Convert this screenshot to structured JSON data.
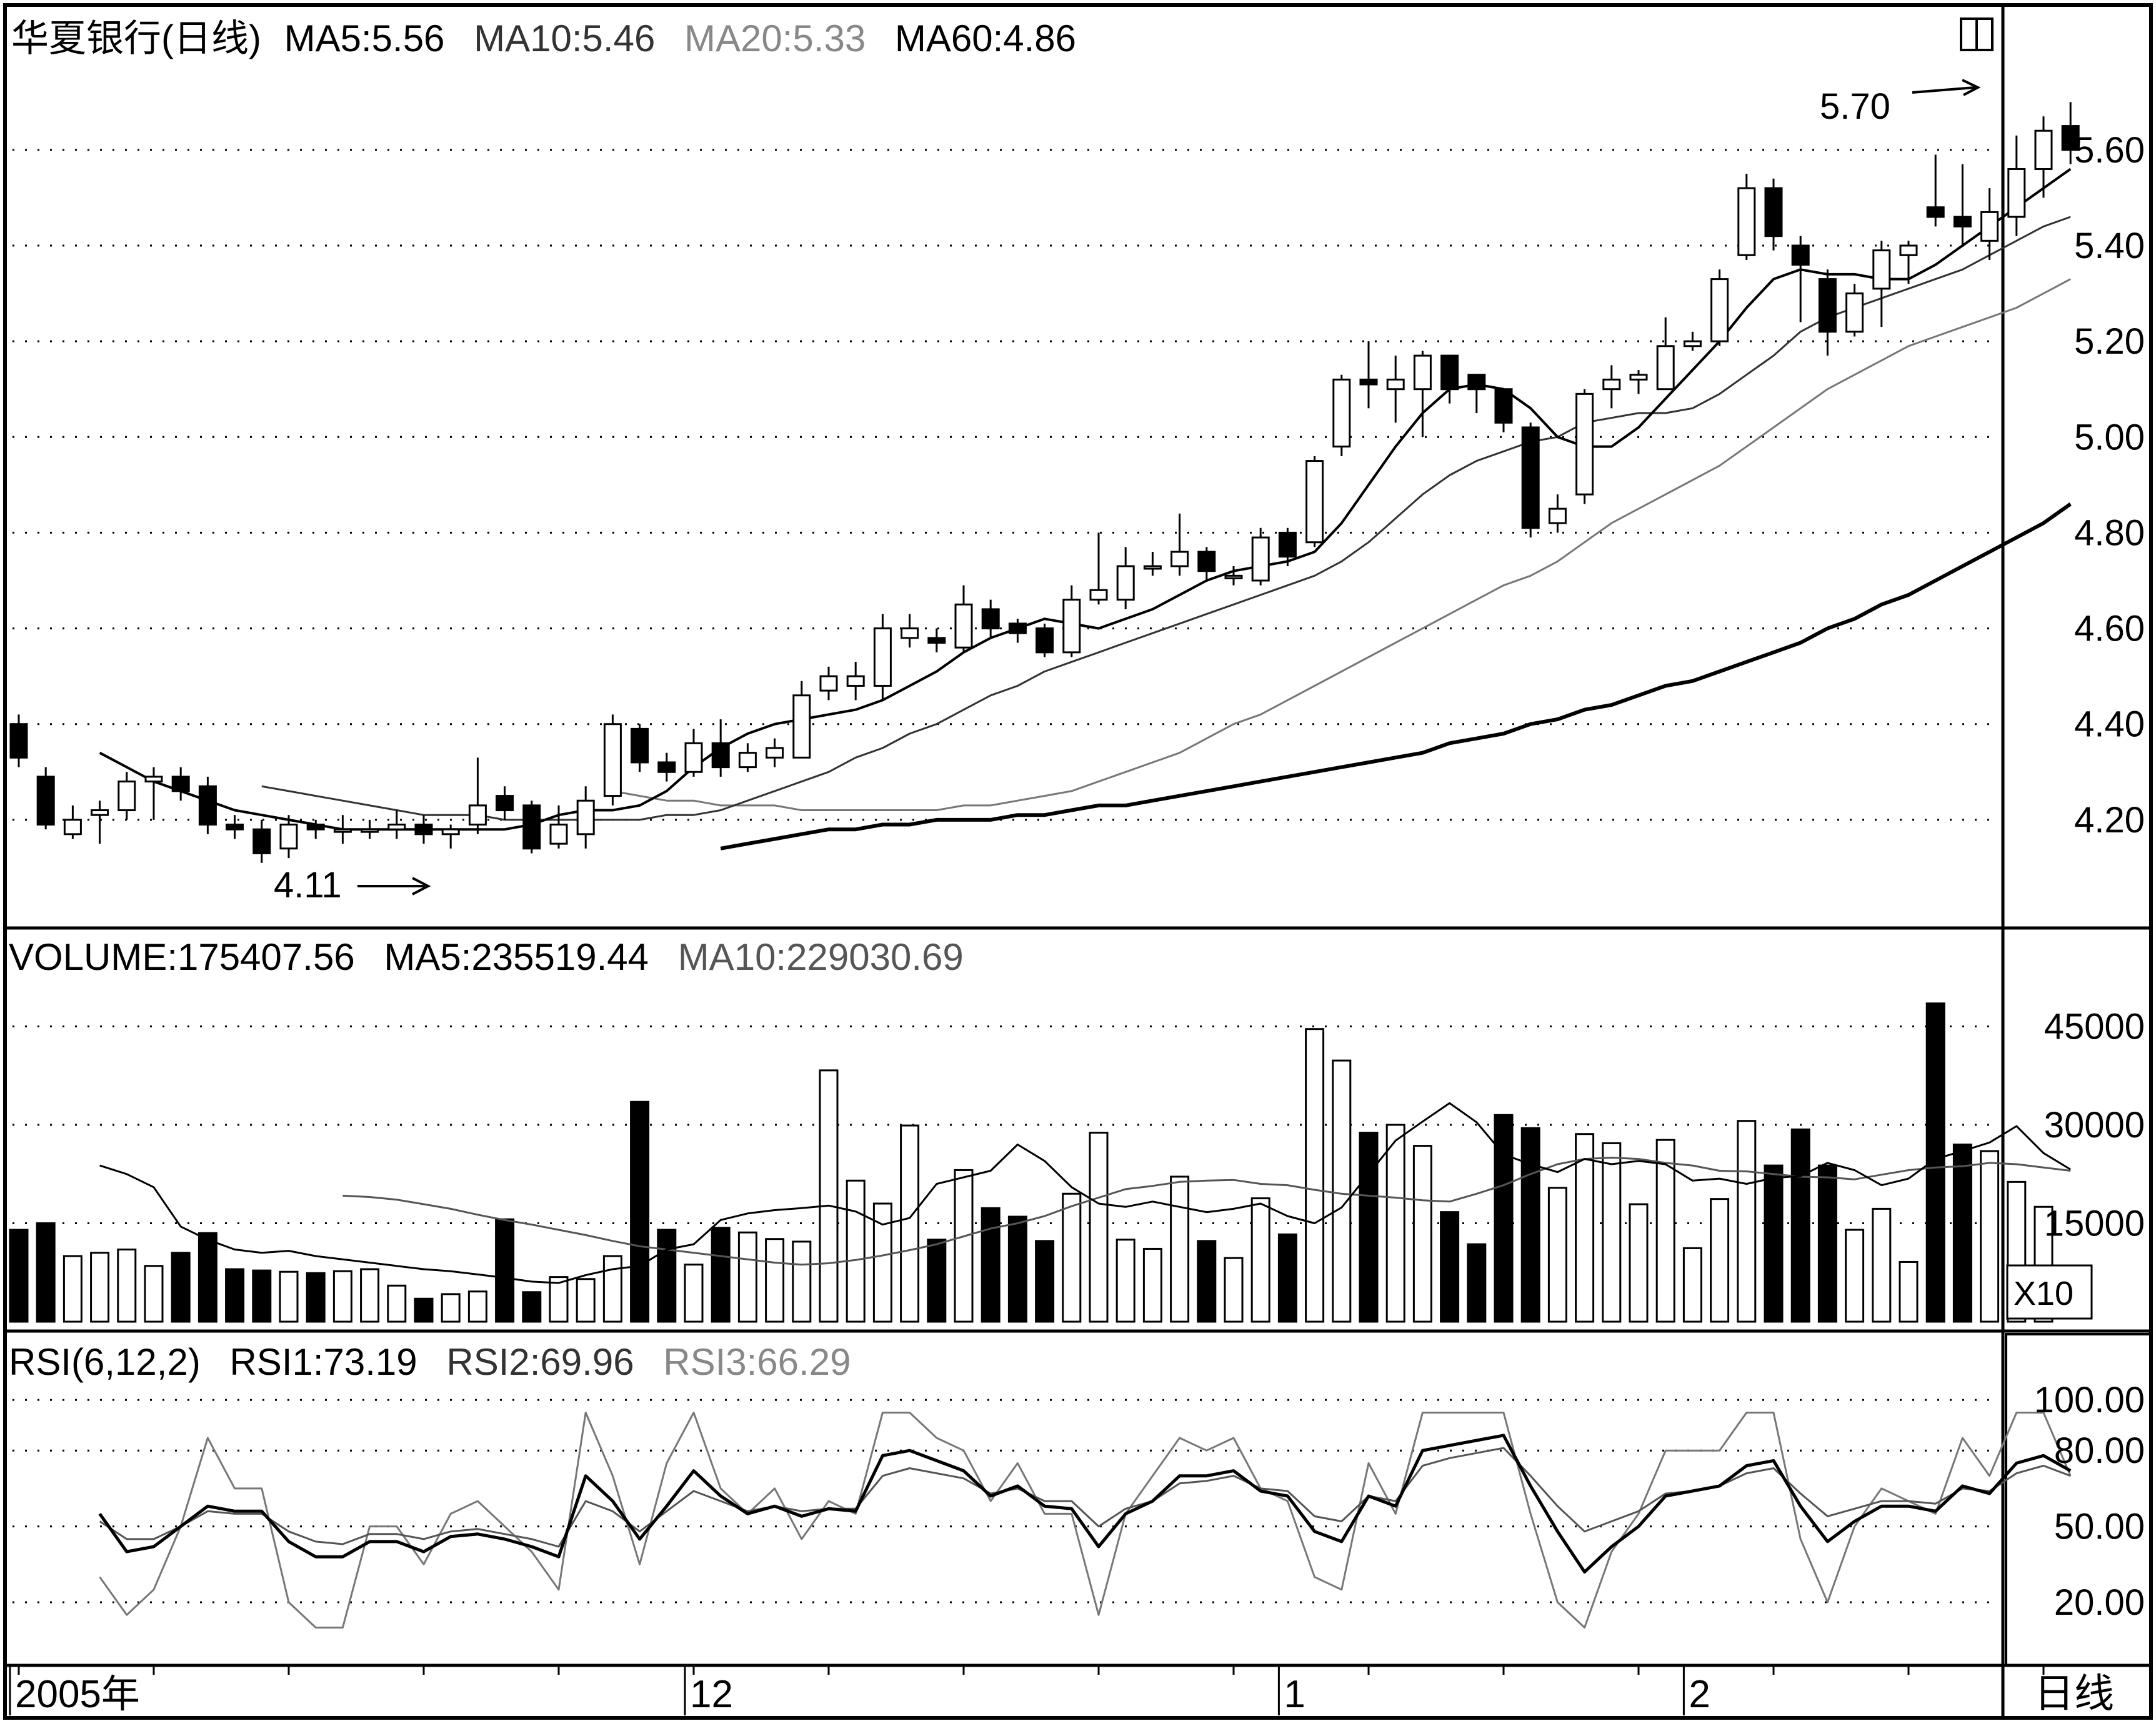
{
  "price_header": {
    "stock": "华夏银行(日线)",
    "ma5": "MA5:5.56",
    "ma10": "MA10:5.46",
    "ma20": "MA20:5.33",
    "ma60": "MA60:4.86"
  },
  "volume_header": {
    "volume": "VOLUME:175407.56",
    "ma5": "MA5:235519.44",
    "ma10": "MA10:229030.69"
  },
  "rsi_header": {
    "name": "RSI(6,12,2)",
    "rsi1": "RSI1:73.19",
    "rsi2": "RSI2:69.96",
    "rsi3": "RSI3:66.29"
  },
  "annotations": {
    "low": "4.11",
    "high": "5.70",
    "volume_unit": "X10",
    "period": "日线"
  },
  "colors": {
    "up": "#ffffff",
    "down": "#000000",
    "ma5": "#000000",
    "ma10": "#333333",
    "ma20": "#777777",
    "ma60": "#000000"
  },
  "chart_data": [
    {
      "type": "candlestick",
      "ylim": [
        4.0,
        5.75
      ],
      "yticks": [
        "4.20",
        "4.40",
        "4.60",
        "4.80",
        "5.00",
        "5.20",
        "5.40",
        "5.60"
      ],
      "ytick_values": [
        4.2,
        4.4,
        4.6,
        4.8,
        5.0,
        5.2,
        5.4,
        5.6
      ],
      "candles": [
        [
          4.4,
          4.33,
          4.42,
          4.31
        ],
        [
          4.29,
          4.19,
          4.31,
          4.18
        ],
        [
          4.17,
          4.2,
          4.23,
          4.16
        ],
        [
          4.21,
          4.22,
          4.24,
          4.15
        ],
        [
          4.22,
          4.28,
          4.3,
          4.2
        ],
        [
          4.28,
          4.29,
          4.31,
          4.2
        ],
        [
          4.29,
          4.26,
          4.31,
          4.24
        ],
        [
          4.27,
          4.19,
          4.29,
          4.17
        ],
        [
          4.19,
          4.18,
          4.21,
          4.16
        ],
        [
          4.18,
          4.13,
          4.2,
          4.11
        ],
        [
          4.14,
          4.19,
          4.21,
          4.12
        ],
        [
          4.19,
          4.18,
          4.2,
          4.16
        ],
        [
          4.18,
          4.18,
          4.21,
          4.15
        ],
        [
          4.18,
          4.18,
          4.2,
          4.16
        ],
        [
          4.18,
          4.19,
          4.22,
          4.16
        ],
        [
          4.19,
          4.17,
          4.21,
          4.15
        ],
        [
          4.17,
          4.18,
          4.19,
          4.14
        ],
        [
          4.19,
          4.23,
          4.33,
          4.17
        ],
        [
          4.25,
          4.22,
          4.27,
          4.2
        ],
        [
          4.23,
          4.14,
          4.24,
          4.13
        ],
        [
          4.15,
          4.19,
          4.23,
          4.14
        ],
        [
          4.17,
          4.24,
          4.27,
          4.14
        ],
        [
          4.25,
          4.4,
          4.42,
          4.23
        ],
        [
          4.39,
          4.32,
          4.4,
          4.3
        ],
        [
          4.32,
          4.3,
          4.34,
          4.28
        ],
        [
          4.3,
          4.36,
          4.39,
          4.29
        ],
        [
          4.36,
          4.31,
          4.41,
          4.29
        ],
        [
          4.31,
          4.34,
          4.36,
          4.3
        ],
        [
          4.33,
          4.35,
          4.37,
          4.31
        ],
        [
          4.33,
          4.46,
          4.49,
          4.33
        ],
        [
          4.47,
          4.5,
          4.52,
          4.45
        ],
        [
          4.48,
          4.5,
          4.53,
          4.45
        ],
        [
          4.48,
          4.6,
          4.63,
          4.45
        ],
        [
          4.58,
          4.6,
          4.63,
          4.56
        ],
        [
          4.58,
          4.57,
          4.6,
          4.55
        ],
        [
          4.56,
          4.65,
          4.69,
          4.55
        ],
        [
          4.64,
          4.6,
          4.66,
          4.58
        ],
        [
          4.61,
          4.59,
          4.62,
          4.57
        ],
        [
          4.6,
          4.55,
          4.61,
          4.54
        ],
        [
          4.55,
          4.66,
          4.69,
          4.54
        ],
        [
          4.66,
          4.68,
          4.8,
          4.65
        ],
        [
          4.66,
          4.73,
          4.77,
          4.64
        ],
        [
          4.73,
          4.73,
          4.76,
          4.71
        ],
        [
          4.73,
          4.76,
          4.84,
          4.71
        ],
        [
          4.76,
          4.72,
          4.77,
          4.7
        ],
        [
          4.71,
          4.71,
          4.73,
          4.69
        ],
        [
          4.7,
          4.79,
          4.81,
          4.69
        ],
        [
          4.8,
          4.75,
          4.81,
          4.73
        ],
        [
          4.78,
          4.95,
          4.96,
          4.77
        ],
        [
          4.98,
          5.12,
          5.13,
          4.96
        ],
        [
          5.12,
          5.11,
          5.2,
          5.06
        ],
        [
          5.1,
          5.12,
          5.17,
          5.03
        ],
        [
          5.1,
          5.17,
          5.18,
          5.0
        ],
        [
          5.17,
          5.1,
          5.17,
          5.07
        ],
        [
          5.13,
          5.1,
          5.13,
          5.05
        ],
        [
          5.1,
          5.03,
          5.1,
          5.01
        ],
        [
          5.02,
          4.81,
          5.03,
          4.79
        ],
        [
          4.82,
          4.85,
          4.88,
          4.8
        ],
        [
          4.88,
          5.09,
          5.1,
          4.86
        ],
        [
          5.1,
          5.12,
          5.15,
          5.06
        ],
        [
          5.12,
          5.13,
          5.14,
          5.09
        ],
        [
          5.1,
          5.19,
          5.25,
          5.1
        ],
        [
          5.19,
          5.2,
          5.22,
          5.18
        ],
        [
          5.2,
          5.33,
          5.35,
          5.19
        ],
        [
          5.38,
          5.52,
          5.55,
          5.37
        ],
        [
          5.52,
          5.42,
          5.54,
          5.39
        ],
        [
          5.4,
          5.36,
          5.42,
          5.24
        ],
        [
          5.33,
          5.22,
          5.35,
          5.17
        ],
        [
          5.22,
          5.3,
          5.32,
          5.21
        ],
        [
          5.31,
          5.39,
          5.41,
          5.23
        ],
        [
          5.38,
          5.4,
          5.41,
          5.32
        ],
        [
          5.48,
          5.46,
          5.59,
          5.44
        ],
        [
          5.46,
          5.44,
          5.57,
          5.4
        ],
        [
          5.41,
          5.47,
          5.52,
          5.37
        ],
        [
          5.46,
          5.56,
          5.63,
          5.42
        ],
        [
          5.56,
          5.64,
          5.67,
          5.5
        ],
        [
          5.65,
          5.6,
          5.7,
          5.57
        ]
      ],
      "ma5": [
        4.34,
        4.31,
        4.28,
        4.26,
        4.24,
        4.22,
        4.21,
        4.2,
        4.19,
        4.18,
        4.18,
        4.18,
        4.18,
        4.18,
        4.18,
        4.18,
        4.19,
        4.21,
        4.22,
        4.22,
        4.23,
        4.26,
        4.31,
        4.35,
        4.38,
        4.4,
        4.41,
        4.42,
        4.43,
        4.45,
        4.48,
        4.51,
        4.55,
        4.58,
        4.6,
        4.62,
        4.61,
        4.6,
        4.62,
        4.64,
        4.67,
        4.7,
        4.72,
        4.73,
        4.74,
        4.76,
        4.82,
        4.9,
        4.98,
        5.05,
        5.1,
        5.11,
        5.1,
        5.06,
        5.0,
        4.98,
        4.98,
        5.02,
        5.08,
        5.14,
        5.2,
        5.27,
        5.33,
        5.35,
        5.34,
        5.34,
        5.33,
        5.33,
        5.36,
        5.4,
        5.44,
        5.48,
        5.52,
        5.56
      ],
      "ma10": [
        4.27,
        4.26,
        4.25,
        4.24,
        4.23,
        4.22,
        4.21,
        4.21,
        4.21,
        4.2,
        4.2,
        4.2,
        4.2,
        4.2,
        4.2,
        4.21,
        4.21,
        4.22,
        4.24,
        4.26,
        4.28,
        4.3,
        4.33,
        4.35,
        4.38,
        4.4,
        4.43,
        4.46,
        4.48,
        4.51,
        4.53,
        4.55,
        4.57,
        4.59,
        4.61,
        4.63,
        4.65,
        4.67,
        4.69,
        4.71,
        4.74,
        4.78,
        4.83,
        4.88,
        4.92,
        4.95,
        4.97,
        4.99,
        5.0,
        5.03,
        5.04,
        5.05,
        5.05,
        5.06,
        5.09,
        5.13,
        5.17,
        5.22,
        5.25,
        5.27,
        5.29,
        5.31,
        5.33,
        5.35,
        5.38,
        5.41,
        5.44,
        5.46
      ],
      "ma20": [
        4.26,
        4.25,
        4.24,
        4.24,
        4.23,
        4.23,
        4.23,
        4.22,
        4.22,
        4.22,
        4.22,
        4.22,
        4.22,
        4.23,
        4.23,
        4.24,
        4.25,
        4.26,
        4.28,
        4.3,
        4.32,
        4.34,
        4.37,
        4.4,
        4.42,
        4.45,
        4.48,
        4.51,
        4.54,
        4.57,
        4.6,
        4.63,
        4.66,
        4.69,
        4.71,
        4.74,
        4.78,
        4.82,
        4.85,
        4.88,
        4.91,
        4.94,
        4.98,
        5.02,
        5.06,
        5.1,
        5.13,
        5.16,
        5.19,
        5.21,
        5.23,
        5.25,
        5.27,
        5.3,
        5.33
      ],
      "ma60": [
        4.14,
        4.15,
        4.16,
        4.17,
        4.18,
        4.18,
        4.19,
        4.19,
        4.2,
        4.2,
        4.2,
        4.21,
        4.21,
        4.22,
        4.23,
        4.23,
        4.24,
        4.25,
        4.26,
        4.27,
        4.28,
        4.29,
        4.3,
        4.31,
        4.32,
        4.33,
        4.34,
        4.36,
        4.37,
        4.38,
        4.4,
        4.41,
        4.43,
        4.44,
        4.46,
        4.48,
        4.49,
        4.51,
        4.53,
        4.55,
        4.57,
        4.6,
        4.62,
        4.65,
        4.67,
        4.7,
        4.73,
        4.76,
        4.79,
        4.82,
        4.86
      ]
    },
    {
      "type": "bar",
      "ylim": [
        0,
        50000
      ],
      "yticks": [
        "15000",
        "30000",
        "45000"
      ],
      "ytick_values": [
        15000,
        30000,
        45000
      ],
      "values": [
        14000,
        15000,
        10000,
        10500,
        11000,
        8500,
        10500,
        13500,
        8000,
        7800,
        7600,
        7400,
        7700,
        8000,
        5500,
        3500,
        4200,
        4600,
        15600,
        4500,
        6800,
        6500,
        10000,
        33500,
        14000,
        8700,
        14300,
        13600,
        12600,
        12200,
        38300,
        21500,
        18000,
        29900,
        12500,
        23100,
        17300,
        16000,
        12300,
        19500,
        28800,
        12500,
        11100,
        22100,
        12300,
        9700,
        18800,
        13300,
        44600,
        39800,
        28800,
        30000,
        26800,
        16700,
        11800,
        31500,
        29500,
        20400,
        28600,
        27200,
        17900,
        27700,
        11200,
        18700,
        30600,
        23800,
        29300,
        23800,
        14000,
        17200,
        9100,
        48500,
        27000,
        26000,
        21300,
        17500
      ],
      "ma5": [
        23800,
        22500,
        20500,
        14500,
        12500,
        11000,
        10500,
        10800,
        10000,
        9500,
        9000,
        8500,
        8000,
        7700,
        7200,
        6700,
        6100,
        5900,
        7100,
        8000,
        8500,
        11000,
        11800,
        15500,
        16500,
        17000,
        17300,
        17700,
        16800,
        14800,
        15800,
        21000,
        22000,
        23000,
        27000,
        24500,
        20500,
        18000,
        17500,
        18300,
        17500,
        16700,
        17200,
        18000,
        16100,
        15000,
        17400,
        22500,
        27600,
        30500,
        33300,
        30400,
        25500,
        24000,
        22800,
        24800,
        24000,
        24500,
        24000,
        21500,
        21800,
        21000,
        21900,
        22200,
        24200,
        23100,
        20800,
        21800,
        24800,
        26000,
        27300,
        29800,
        25700,
        23200
      ],
      "ma10": [
        19200,
        19000,
        18600,
        17900,
        17200,
        16300,
        15500,
        14800,
        14000,
        13200,
        12300,
        11500,
        11000,
        10500,
        10000,
        9500,
        9000,
        8700,
        8900,
        9400,
        10100,
        10900,
        11800,
        13000,
        14200,
        15000,
        16100,
        17600,
        18900,
        20200,
        20700,
        21300,
        21500,
        21600,
        21000,
        20800,
        20100,
        19500,
        19200,
        18900,
        18500,
        18300,
        19500,
        20800,
        22500,
        24000,
        24800,
        25000,
        24800,
        24200,
        23800,
        23000,
        22900,
        22500,
        22100,
        22000,
        21700,
        22400,
        23100,
        23500,
        23700,
        24200,
        24000,
        23500,
        23000
      ]
    },
    {
      "type": "line",
      "ylim": [
        0,
        105
      ],
      "yticks": [
        "20.00",
        "50.00",
        "80.00",
        "100.00"
      ],
      "ytick_values": [
        20,
        50,
        80,
        100
      ],
      "rsi1": [
        30,
        15,
        25,
        50,
        85,
        65,
        65,
        20,
        10,
        10,
        50,
        50,
        35,
        55,
        60,
        50,
        40,
        25,
        95,
        70,
        35,
        75,
        95,
        65,
        55,
        65,
        45,
        60,
        55,
        95,
        95,
        85,
        80,
        60,
        75,
        55,
        55,
        15,
        55,
        70,
        85,
        80,
        85,
        65,
        60,
        30,
        25,
        75,
        55,
        95,
        95,
        95,
        95,
        55,
        20,
        10,
        40,
        55,
        80,
        80,
        80,
        95,
        95,
        45,
        20,
        50,
        65,
        60,
        55,
        85,
        70,
        95,
        95,
        70
      ],
      "rsi2": [
        55,
        40,
        42,
        50,
        58,
        56,
        56,
        44,
        38,
        38,
        44,
        44,
        40,
        46,
        47,
        45,
        42,
        38,
        70,
        60,
        45,
        58,
        72,
        62,
        55,
        58,
        54,
        57,
        56,
        78,
        80,
        76,
        72,
        62,
        66,
        58,
        57,
        42,
        55,
        60,
        70,
        70,
        72,
        64,
        62,
        48,
        44,
        62,
        58,
        80,
        82,
        84,
        86,
        66,
        48,
        32,
        42,
        50,
        62,
        64,
        66,
        74,
        76,
        58,
        44,
        52,
        58,
        58,
        56,
        66,
        63,
        75,
        78,
        72
      ],
      "rsi3": [
        52,
        45,
        45,
        50,
        56,
        55,
        55,
        48,
        44,
        43,
        47,
        47,
        45,
        48,
        49,
        47,
        45,
        42,
        60,
        56,
        48,
        56,
        64,
        60,
        56,
        58,
        56,
        57,
        57,
        70,
        73,
        71,
        69,
        63,
        65,
        60,
        60,
        50,
        57,
        60,
        67,
        68,
        70,
        65,
        64,
        54,
        52,
        62,
        60,
        74,
        77,
        79,
        81,
        70,
        58,
        48,
        52,
        56,
        63,
        64,
        66,
        71,
        73,
        63,
        54,
        57,
        60,
        60,
        59,
        65,
        64,
        71,
        74,
        70
      ]
    }
  ],
  "x_axis": {
    "labels": [
      {
        "text": "2005年",
        "index": 0
      },
      {
        "text": "12",
        "index": 25
      },
      {
        "text": "1",
        "index": 47
      },
      {
        "text": "2",
        "index": 62
      }
    ]
  }
}
